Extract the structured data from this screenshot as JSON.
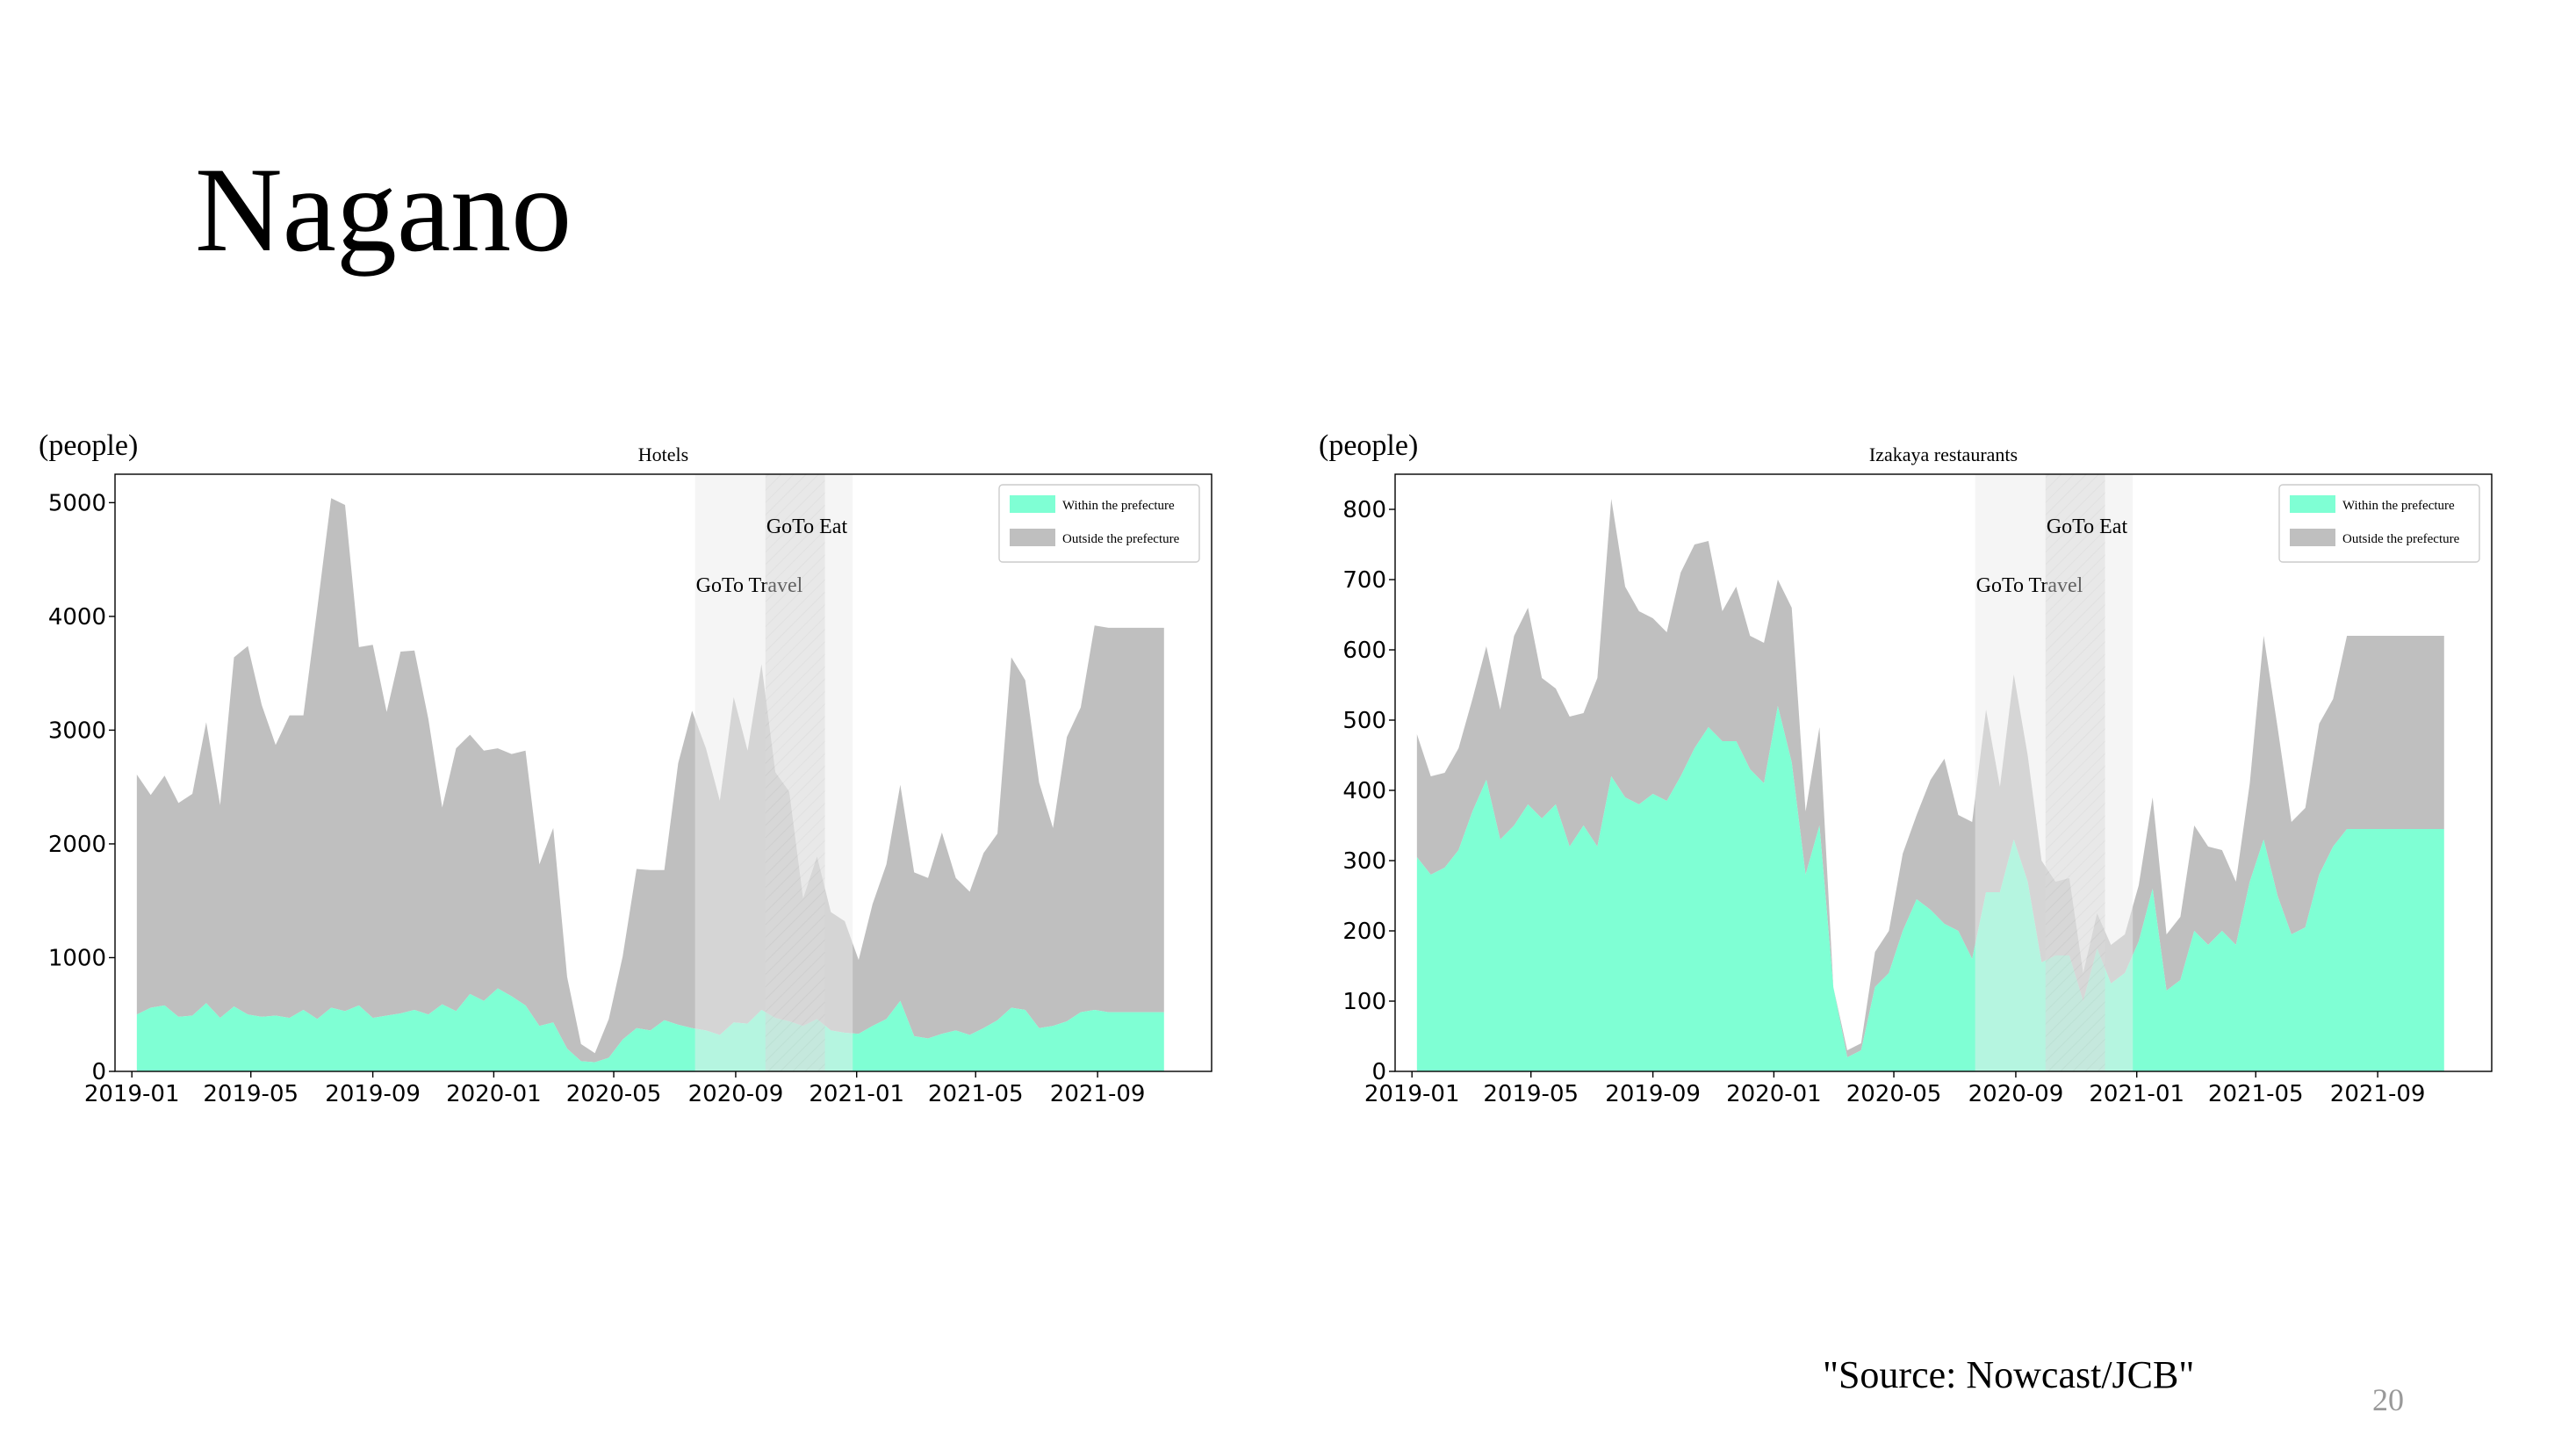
{
  "slide": {
    "title": "Nagano",
    "source": "\"Source: Nowcast/JCB\"",
    "page_number": "20"
  },
  "colors": {
    "within": "#7fffd4",
    "outside": "#bfbfbf",
    "goto_travel_band": "#ebebeb",
    "goto_eat_band": "#d9d9d9"
  },
  "chart_data": [
    {
      "type": "area",
      "stacked": true,
      "title": "Hotels",
      "ylabel": "(people)",
      "xlabel": "",
      "ylim": [
        0,
        5250
      ],
      "yticks": [
        0,
        1000,
        2000,
        3000,
        4000,
        5000
      ],
      "x_tick_labels": [
        "2019-01",
        "2019-05",
        "2019-09",
        "2020-01",
        "2020-05",
        "2020-09",
        "2021-01",
        "2021-05",
        "2021-09"
      ],
      "x_tick_dates": [
        "2019-01-01",
        "2019-05-01",
        "2019-09-01",
        "2020-01-01",
        "2020-05-01",
        "2020-09-01",
        "2021-01-01",
        "2021-05-01",
        "2021-09-01"
      ],
      "x_range": [
        "2018-12-15",
        "2021-12-25"
      ],
      "legend_position": "top-right",
      "legend": [
        "Within the prefecture",
        "Outside the prefecture"
      ],
      "annotations": [
        {
          "label": "GoTo Travel",
          "start": "2020-07-22",
          "end": "2020-12-28",
          "style": "light"
        },
        {
          "label": "GoTo Eat",
          "start": "2020-10-01",
          "end": "2020-11-30",
          "style": "hatched"
        }
      ],
      "x": [
        "2019-01-06",
        "2019-01-20",
        "2019-02-03",
        "2019-02-17",
        "2019-03-03",
        "2019-03-17",
        "2019-03-31",
        "2019-04-14",
        "2019-04-28",
        "2019-05-12",
        "2019-05-26",
        "2019-06-09",
        "2019-06-23",
        "2019-07-07",
        "2019-07-21",
        "2019-08-04",
        "2019-08-18",
        "2019-09-01",
        "2019-09-15",
        "2019-09-29",
        "2019-10-13",
        "2019-10-27",
        "2019-11-10",
        "2019-11-24",
        "2019-12-08",
        "2019-12-22",
        "2020-01-05",
        "2020-01-19",
        "2020-02-02",
        "2020-02-16",
        "2020-03-01",
        "2020-03-15",
        "2020-03-29",
        "2020-04-12",
        "2020-04-26",
        "2020-05-10",
        "2020-05-24",
        "2020-06-07",
        "2020-06-21",
        "2020-07-05",
        "2020-07-19",
        "2020-08-02",
        "2020-08-16",
        "2020-08-30",
        "2020-09-13",
        "2020-09-27",
        "2020-10-11",
        "2020-10-25",
        "2020-11-08",
        "2020-11-22",
        "2020-12-06",
        "2020-12-20",
        "2021-01-03",
        "2021-01-17",
        "2021-01-31",
        "2021-02-14",
        "2021-02-28",
        "2021-03-14",
        "2021-03-28",
        "2021-04-11",
        "2021-04-25",
        "2021-05-09",
        "2021-05-23",
        "2021-06-06",
        "2021-06-20",
        "2021-07-04",
        "2021-07-18",
        "2021-08-01",
        "2021-08-15",
        "2021-08-29",
        "2021-09-12",
        "2021-09-26",
        "2021-10-10",
        "2021-10-24",
        "2021-11-07"
      ],
      "series": [
        {
          "name": "Within the prefecture",
          "values": [
            500,
            560,
            580,
            480,
            490,
            600,
            470,
            570,
            500,
            480,
            490,
            470,
            540,
            460,
            560,
            530,
            580,
            470,
            490,
            510,
            540,
            500,
            590,
            530,
            680,
            620,
            730,
            660,
            580,
            400,
            430,
            200,
            90,
            80,
            120,
            280,
            380,
            360,
            450,
            410,
            380,
            360,
            320,
            430,
            420,
            540,
            470,
            440,
            400,
            460,
            360,
            340,
            330,
            400,
            460,
            620,
            310,
            290,
            330,
            360,
            320,
            380,
            450,
            560,
            540,
            380,
            400,
            440,
            520,
            540,
            520,
            520,
            520,
            520,
            520
          ]
        },
        {
          "name": "Outside the prefecture",
          "values": [
            2110,
            1870,
            2020,
            1880,
            1950,
            2470,
            1870,
            3070,
            3240,
            2740,
            2380,
            2660,
            2590,
            3610,
            4480,
            4450,
            3150,
            3280,
            2670,
            3180,
            3160,
            2600,
            1730,
            2310,
            2280,
            2200,
            2110,
            2130,
            2240,
            1420,
            1710,
            630,
            150,
            80,
            340,
            730,
            1400,
            1410,
            1320,
            2300,
            2790,
            2480,
            2060,
            2860,
            2400,
            3040,
            2160,
            2020,
            1120,
            1430,
            1040,
            980,
            650,
            1070,
            1360,
            1900,
            1440,
            1410,
            1770,
            1340,
            1260,
            1540,
            1640,
            3080,
            2900,
            2160,
            1740,
            2500,
            2680,
            3380,
            3380,
            3380,
            3380,
            3380,
            3380
          ]
        }
      ]
    },
    {
      "type": "area",
      "stacked": true,
      "title": "Izakaya restaurants",
      "ylabel": "(people)",
      "xlabel": "",
      "ylim": [
        0,
        850
      ],
      "yticks": [
        0,
        100,
        200,
        300,
        400,
        500,
        600,
        700,
        800
      ],
      "x_tick_labels": [
        "2019-01",
        "2019-05",
        "2019-09",
        "2020-01",
        "2020-05",
        "2020-09",
        "2021-01",
        "2021-05",
        "2021-09"
      ],
      "x_tick_dates": [
        "2019-01-01",
        "2019-05-01",
        "2019-09-01",
        "2020-01-01",
        "2020-05-01",
        "2020-09-01",
        "2021-01-01",
        "2021-05-01",
        "2021-09-01"
      ],
      "x_range": [
        "2018-12-15",
        "2021-12-25"
      ],
      "legend_position": "top-right",
      "legend": [
        "Within the prefecture",
        "Outside the prefecture"
      ],
      "annotations": [
        {
          "label": "GoTo Travel",
          "start": "2020-07-22",
          "end": "2020-12-28",
          "style": "light"
        },
        {
          "label": "GoTo Eat",
          "start": "2020-10-01",
          "end": "2020-11-30",
          "style": "hatched"
        }
      ],
      "x": [
        "2019-01-06",
        "2019-01-20",
        "2019-02-03",
        "2019-02-17",
        "2019-03-03",
        "2019-03-17",
        "2019-03-31",
        "2019-04-14",
        "2019-04-28",
        "2019-05-12",
        "2019-05-26",
        "2019-06-09",
        "2019-06-23",
        "2019-07-07",
        "2019-07-21",
        "2019-08-04",
        "2019-08-18",
        "2019-09-01",
        "2019-09-15",
        "2019-09-29",
        "2019-10-13",
        "2019-10-27",
        "2019-11-10",
        "2019-11-24",
        "2019-12-08",
        "2019-12-22",
        "2020-01-05",
        "2020-01-19",
        "2020-02-02",
        "2020-02-16",
        "2020-03-01",
        "2020-03-15",
        "2020-03-29",
        "2020-04-12",
        "2020-04-26",
        "2020-05-10",
        "2020-05-24",
        "2020-06-07",
        "2020-06-21",
        "2020-07-05",
        "2020-07-19",
        "2020-08-02",
        "2020-08-16",
        "2020-08-30",
        "2020-09-13",
        "2020-09-27",
        "2020-10-11",
        "2020-10-25",
        "2020-11-08",
        "2020-11-22",
        "2020-12-06",
        "2020-12-20",
        "2021-01-03",
        "2021-01-17",
        "2021-01-31",
        "2021-02-14",
        "2021-02-28",
        "2021-03-14",
        "2021-03-28",
        "2021-04-11",
        "2021-04-25",
        "2021-05-09",
        "2021-05-23",
        "2021-06-06",
        "2021-06-20",
        "2021-07-04",
        "2021-07-18",
        "2021-08-01",
        "2021-08-15",
        "2021-08-29",
        "2021-09-12",
        "2021-09-26",
        "2021-10-10",
        "2021-10-24",
        "2021-11-07"
      ],
      "series": [
        {
          "name": "Within the prefecture",
          "values": [
            305,
            280,
            290,
            315,
            370,
            415,
            330,
            350,
            380,
            360,
            380,
            320,
            350,
            320,
            420,
            390,
            380,
            395,
            385,
            420,
            460,
            490,
            470,
            470,
            430,
            410,
            520,
            440,
            280,
            350,
            120,
            20,
            30,
            120,
            140,
            200,
            245,
            230,
            210,
            200,
            160,
            255,
            255,
            330,
            270,
            155,
            165,
            165,
            100,
            175,
            125,
            140,
            185,
            260,
            115,
            130,
            200,
            180,
            200,
            180,
            270,
            330,
            250,
            195,
            205,
            280,
            320,
            345,
            345,
            345,
            345,
            345,
            345,
            345,
            345
          ]
        },
        {
          "name": "Outside the prefecture",
          "values": [
            175,
            140,
            135,
            145,
            160,
            190,
            185,
            270,
            280,
            200,
            165,
            185,
            160,
            240,
            395,
            300,
            275,
            250,
            240,
            290,
            290,
            265,
            185,
            220,
            190,
            200,
            180,
            220,
            90,
            140,
            0,
            10,
            10,
            50,
            60,
            110,
            120,
            185,
            235,
            165,
            195,
            260,
            150,
            235,
            180,
            145,
            105,
            110,
            40,
            50,
            55,
            55,
            80,
            130,
            80,
            90,
            150,
            140,
            115,
            90,
            140,
            290,
            240,
            160,
            170,
            215,
            210,
            275,
            275,
            275,
            275,
            275,
            275,
            275,
            275
          ]
        }
      ]
    }
  ]
}
